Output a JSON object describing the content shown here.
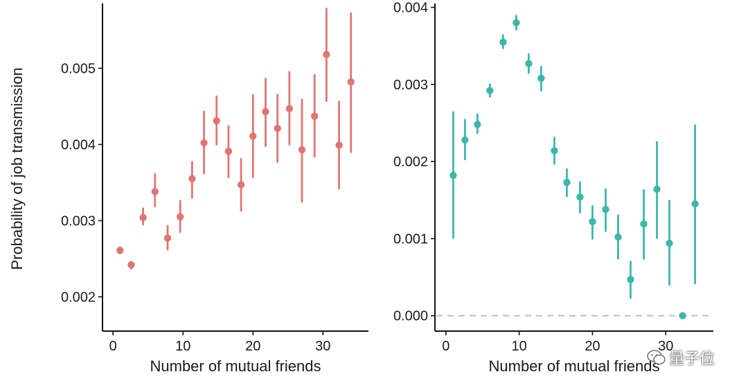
{
  "chart_data": [
    {
      "type": "scatter",
      "subtype": "point-with-error-bars",
      "title": "",
      "xlabel": "Number of mutual friends",
      "ylabel": "Probability of job transmission",
      "xlim": [
        -1.5,
        36.5
      ],
      "ylim": [
        0.00155,
        0.00585
      ],
      "xticks": [
        0,
        10,
        20,
        30
      ],
      "xtick_labels": [
        "0",
        "10",
        "20",
        "30"
      ],
      "yticks": [
        0.002,
        0.003,
        0.004,
        0.005
      ],
      "ytick_labels": [
        "0.002",
        "0.003",
        "0.004",
        "0.005"
      ],
      "color": "#e07672",
      "grid": false,
      "points": [
        {
          "x": 1,
          "y": 0.00261,
          "lo": 0.00257,
          "hi": 0.00265
        },
        {
          "x": 2.6,
          "y": 0.00242,
          "lo": 0.00237,
          "hi": 0.00246
        },
        {
          "x": 4.3,
          "y": 0.00304,
          "lo": 0.00295,
          "hi": 0.00316
        },
        {
          "x": 6,
          "y": 0.00338,
          "lo": 0.00319,
          "hi": 0.00361
        },
        {
          "x": 7.8,
          "y": 0.00277,
          "lo": 0.00262,
          "hi": 0.00293
        },
        {
          "x": 9.6,
          "y": 0.00305,
          "lo": 0.00285,
          "hi": 0.00326
        },
        {
          "x": 11.3,
          "y": 0.00355,
          "lo": 0.0033,
          "hi": 0.00377
        },
        {
          "x": 13,
          "y": 0.00402,
          "lo": 0.00362,
          "hi": 0.00443
        },
        {
          "x": 14.8,
          "y": 0.00431,
          "lo": 0.004,
          "hi": 0.00463
        },
        {
          "x": 16.5,
          "y": 0.00391,
          "lo": 0.00357,
          "hi": 0.00424
        },
        {
          "x": 18.3,
          "y": 0.00347,
          "lo": 0.00313,
          "hi": 0.00381
        },
        {
          "x": 20,
          "y": 0.00411,
          "lo": 0.00357,
          "hi": 0.00465
        },
        {
          "x": 21.8,
          "y": 0.00443,
          "lo": 0.00398,
          "hi": 0.00486
        },
        {
          "x": 23.5,
          "y": 0.00421,
          "lo": 0.00377,
          "hi": 0.00465
        },
        {
          "x": 25.2,
          "y": 0.00447,
          "lo": 0.004,
          "hi": 0.00495
        },
        {
          "x": 27,
          "y": 0.00393,
          "lo": 0.00325,
          "hi": 0.00459
        },
        {
          "x": 28.8,
          "y": 0.00437,
          "lo": 0.00384,
          "hi": 0.00491
        },
        {
          "x": 30.5,
          "y": 0.00518,
          "lo": 0.00457,
          "hi": 0.00578
        },
        {
          "x": 32.3,
          "y": 0.00399,
          "lo": 0.00342,
          "hi": 0.00456
        },
        {
          "x": 34,
          "y": 0.00482,
          "lo": 0.0039,
          "hi": 0.00572
        }
      ]
    },
    {
      "type": "scatter",
      "subtype": "point-with-error-bars",
      "title": "",
      "xlabel": "Number of mutual friends",
      "ylabel": "",
      "xlim": [
        -1.5,
        36.5
      ],
      "ylim": [
        -0.0002,
        0.00405
      ],
      "xticks": [
        0,
        10,
        20,
        30
      ],
      "xtick_labels": [
        "0",
        "10",
        "20",
        "30"
      ],
      "yticks": [
        0.0,
        0.001,
        0.002,
        0.003,
        0.004
      ],
      "ytick_labels": [
        "0.000",
        "0.001",
        "0.002",
        "0.003",
        "0.004"
      ],
      "reference_line": {
        "y": 0.0,
        "style": "dashed",
        "color": "#bdbdbd"
      },
      "color": "#3fb6ac",
      "grid": false,
      "points": [
        {
          "x": 1,
          "y": 0.00182,
          "lo": 0.00101,
          "hi": 0.00264
        },
        {
          "x": 2.6,
          "y": 0.00228,
          "lo": 0.00203,
          "hi": 0.00254
        },
        {
          "x": 4.3,
          "y": 0.00248,
          "lo": 0.00237,
          "hi": 0.00261
        },
        {
          "x": 6,
          "y": 0.00292,
          "lo": 0.00284,
          "hi": 0.003
        },
        {
          "x": 7.8,
          "y": 0.00355,
          "lo": 0.00347,
          "hi": 0.00364
        },
        {
          "x": 9.6,
          "y": 0.0038,
          "lo": 0.00371,
          "hi": 0.00389
        },
        {
          "x": 11.3,
          "y": 0.00327,
          "lo": 0.00315,
          "hi": 0.00339
        },
        {
          "x": 13,
          "y": 0.00308,
          "lo": 0.00292,
          "hi": 0.00323
        },
        {
          "x": 14.8,
          "y": 0.00214,
          "lo": 0.00197,
          "hi": 0.00231
        },
        {
          "x": 16.5,
          "y": 0.00173,
          "lo": 0.00155,
          "hi": 0.0019
        },
        {
          "x": 18.3,
          "y": 0.00154,
          "lo": 0.00134,
          "hi": 0.00173
        },
        {
          "x": 20,
          "y": 0.00122,
          "lo": 0.001,
          "hi": 0.00142
        },
        {
          "x": 21.8,
          "y": 0.00138,
          "lo": 0.0011,
          "hi": 0.00164
        },
        {
          "x": 23.5,
          "y": 0.00102,
          "lo": 0.00074,
          "hi": 0.0013
        },
        {
          "x": 25.2,
          "y": 0.00047,
          "lo": 0.00023,
          "hi": 0.0007
        },
        {
          "x": 27,
          "y": 0.00119,
          "lo": 0.00074,
          "hi": 0.00163
        },
        {
          "x": 28.8,
          "y": 0.00164,
          "lo": 0.00101,
          "hi": 0.00225
        },
        {
          "x": 30.5,
          "y": 0.00094,
          "lo": 0.0004,
          "hi": 0.00149
        },
        {
          "x": 32.3,
          "y": 0.0,
          "lo": 0.0,
          "hi": 0.0
        },
        {
          "x": 34,
          "y": 0.00145,
          "lo": 0.00042,
          "hi": 0.00247
        }
      ]
    }
  ],
  "watermark": {
    "text": "量子位",
    "icon": "wechat-icon"
  }
}
